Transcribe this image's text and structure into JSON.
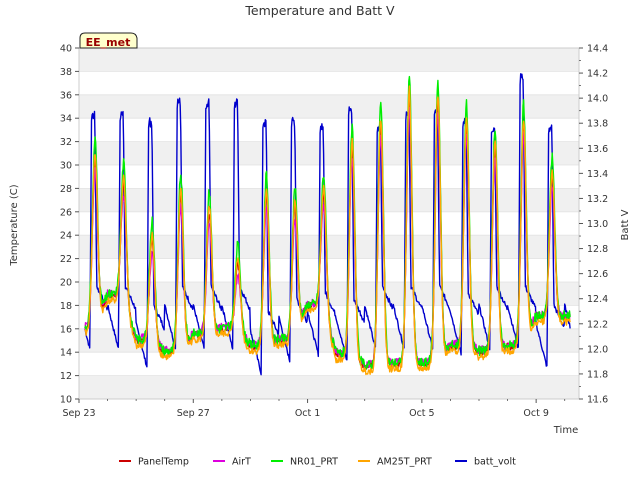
{
  "chart_data": {
    "type": "line",
    "title": "Temperature and Batt V",
    "badge": "EE_met",
    "xlabel": "Time",
    "ylabel": "Temperature (C)",
    "ylabel_right": "Batt V",
    "ylim": [
      10,
      40
    ],
    "ylim_right": [
      11.6,
      14.4
    ],
    "yticks": [
      10,
      12,
      14,
      16,
      18,
      20,
      22,
      24,
      26,
      28,
      30,
      32,
      34,
      36,
      38,
      40
    ],
    "yticks_right": [
      11.6,
      11.8,
      12.0,
      12.2,
      12.4,
      12.6,
      12.8,
      13.0,
      13.2,
      13.4,
      13.6,
      13.8,
      14.0,
      14.2,
      14.4
    ],
    "x_start": "2023-09-23",
    "x_end": "2023-10-10",
    "xticks": [
      {
        "label": "Sep 23",
        "date": "2023-09-23"
      },
      {
        "label": "Sep 27",
        "date": "2023-09-27"
      },
      {
        "label": "Oct 1",
        "date": "2023-10-01"
      },
      {
        "label": "Oct 5",
        "date": "2023-10-05"
      },
      {
        "label": "Oct 9",
        "date": "2023-10-09"
      }
    ],
    "grid": "horizontal bands",
    "legend_position": "bottom",
    "daily": {
      "dates": [
        "2023-09-23",
        "2023-09-24",
        "2023-09-25",
        "2023-09-26",
        "2023-09-27",
        "2023-09-28",
        "2023-09-29",
        "2023-09-30",
        "2023-10-01",
        "2023-10-02",
        "2023-10-03",
        "2023-10-04",
        "2023-10-05",
        "2023-10-06",
        "2023-10-07",
        "2023-10-08",
        "2023-10-09",
        "2023-10-10"
      ],
      "panel_min": [
        16.0,
        18.8,
        15.0,
        14.0,
        15.5,
        16.0,
        14.5,
        15.0,
        18.0,
        13.8,
        12.8,
        13.0,
        13.0,
        14.5,
        14.0,
        14.5,
        17.0,
        17.0
      ],
      "panel_max": [
        31.0,
        29.0,
        24.0,
        28.0,
        26.5,
        22.0,
        28.0,
        27.0,
        28.0,
        32.0,
        34.0,
        36.5,
        36.0,
        34.0,
        32.0,
        34.0,
        29.5,
        29.5
      ]
    },
    "series": [
      {
        "name": "PanelTemp",
        "color": "#cc0000"
      },
      {
        "name": "AirT",
        "color": "#dd00dd"
      },
      {
        "name": "NR01_PRT",
        "color": "#00ee00"
      },
      {
        "name": "AM25T_PRT",
        "color": "#ffa500"
      },
      {
        "name": "batt_volt",
        "color": "#0000cc",
        "axis": "right",
        "daily_min": [
          12.0,
          12.0,
          11.85,
          12.0,
          12.0,
          12.0,
          11.8,
          11.9,
          11.95,
          11.9,
          12.0,
          12.0,
          12.0,
          11.95,
          12.0,
          12.0,
          11.85,
          12.0
        ],
        "daily_max": [
          13.9,
          13.9,
          13.85,
          14.0,
          14.0,
          14.0,
          13.85,
          13.85,
          13.8,
          13.95,
          13.8,
          13.9,
          13.95,
          13.85,
          13.8,
          14.2,
          13.8,
          13.8
        ]
      }
    ]
  }
}
